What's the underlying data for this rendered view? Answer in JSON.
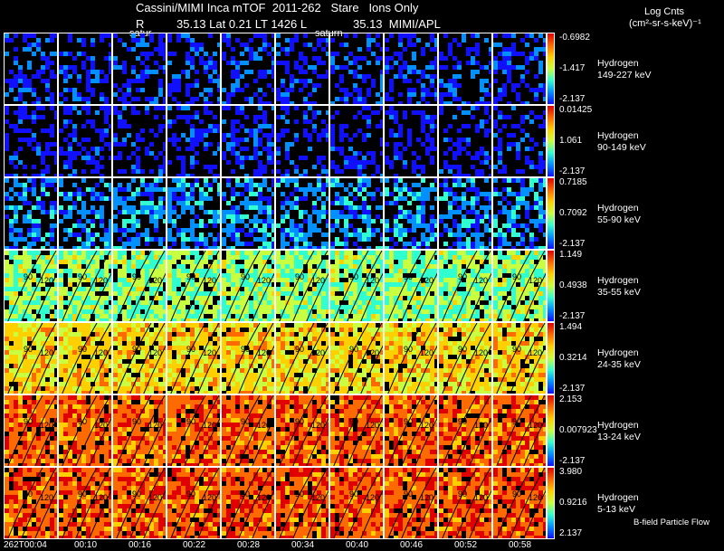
{
  "header": {
    "line1": "Cassini/MIMI Inca mTOF  2011-262   Stare   Ions Only",
    "line2_left": "R",
    "line2_mid": "35.13 Lat 0.21 LT 1426 L",
    "line2_right": "35.13  MIMI/APL",
    "overlay_left": "satur",
    "overlay_mid": "saturn",
    "units_title": "Log Cnts",
    "units": "(cm²-sr-s-keV)⁻¹"
  },
  "footer_note": "B-field Particle Flow",
  "chart_data": {
    "type": "heatmap",
    "times": [
      "262T00:04",
      "00:10",
      "00:16",
      "00:22",
      "00:28",
      "00:34",
      "00:40",
      "00:46",
      "00:52",
      "00:58"
    ],
    "pitch_angle_contours": [
      "60",
      "90",
      "120",
      "150"
    ],
    "rows": [
      {
        "species": "Hydrogen",
        "energy": "149-227 keV",
        "max": "-0.6982",
        "mid": "-1.417",
        "min": "-2.137",
        "level": 0.1
      },
      {
        "species": "Hydrogen",
        "energy": "90-149 keV",
        "max": "0.01425",
        "mid": "1.061",
        "min": "-2.137",
        "level": 0.05
      },
      {
        "species": "Hydrogen",
        "energy": "55-90 keV",
        "max": "0.7185",
        "mid": "0.7092",
        "min": "-2.137",
        "level": 0.22
      },
      {
        "species": "Hydrogen",
        "energy": "35-55 keV",
        "max": "1.149",
        "mid": "0.4938",
        "min": "-2.137",
        "level": 0.45
      },
      {
        "species": "Hydrogen",
        "energy": "24-35 keV",
        "max": "1.494",
        "mid": "0.3214",
        "min": "-2.137",
        "level": 0.62
      },
      {
        "species": "Hydrogen",
        "energy": "13-24 keV",
        "max": "2.153",
        "mid": "0.007923",
        "min": "-2.137",
        "level": 0.8
      },
      {
        "species": "Hydrogen",
        "energy": "5-13 keV",
        "max": "3.980",
        "mid": "0.9216",
        "min": "2.137",
        "level": 0.82
      }
    ],
    "colormap": [
      "#1010ff",
      "#0090ff",
      "#30ffd0",
      "#c8ff40",
      "#ffd000",
      "#ff6a00",
      "#e00000"
    ]
  }
}
